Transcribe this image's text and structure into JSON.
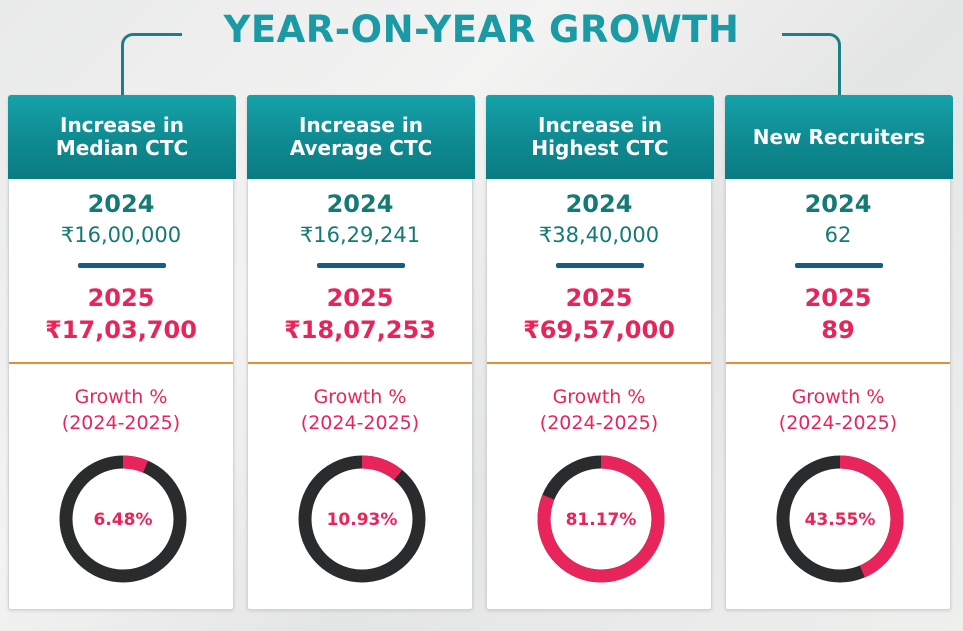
{
  "header": {
    "title": "YEAR-ON-YEAR GROWTH"
  },
  "colors": {
    "teal": "#0e8a90",
    "pink": "#e8255a",
    "dark_ring": "#2a2b2d",
    "separator": "#135d86",
    "divider": "#ee8a34"
  },
  "cards": [
    {
      "heading": "Increase in Median CTC",
      "year_1": "2024",
      "value_1": "₹16,00,000",
      "year_2": "2025",
      "value_2": "₹17,03,700",
      "growth_label_1": "Growth %",
      "growth_label_2": "(2024-2025)",
      "growth_text": "6.48%",
      "growth_percent": 6.48
    },
    {
      "heading": "Increase in Average CTC",
      "year_1": "2024",
      "value_1": "₹16,29,241",
      "year_2": "2025",
      "value_2": "₹18,07,253",
      "growth_label_1": "Growth %",
      "growth_label_2": "(2024-2025)",
      "growth_text": "10.93%",
      "growth_percent": 10.93
    },
    {
      "heading": "Increase in Highest CTC",
      "year_1": "2024",
      "value_1": "₹38,40,000",
      "year_2": "2025",
      "value_2": "₹69,57,000",
      "growth_label_1": "Growth %",
      "growth_label_2": "(2024-2025)",
      "growth_text": "81.17%",
      "growth_percent": 81.17
    },
    {
      "heading": "New Recruiters",
      "year_1": "2024",
      "value_1": "62",
      "year_2": "2025",
      "value_2": "89",
      "growth_label_1": "Growth %",
      "growth_label_2": "(2024-2025)",
      "growth_text": "43.55%",
      "growth_percent": 43.55
    }
  ]
}
